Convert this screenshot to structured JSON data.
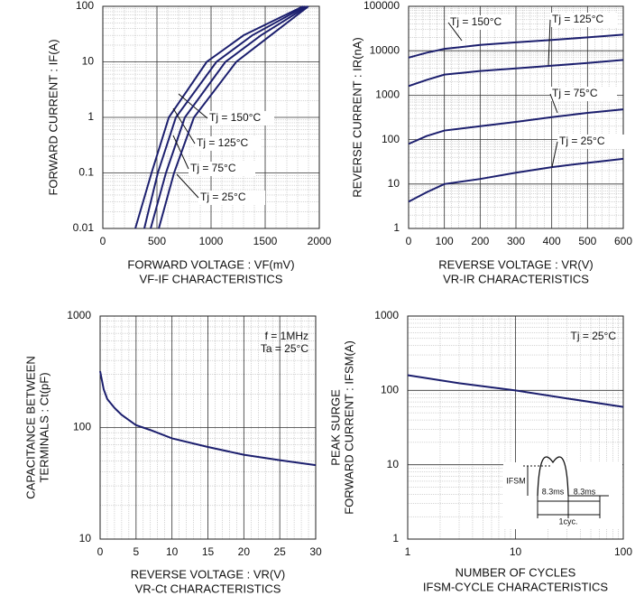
{
  "chart_data": [
    {
      "type": "line",
      "title": "VF-IF CHARACTERISTICS",
      "xlabel": "FORWARD VOLTAGE : VF(mV)",
      "ylabel": [
        "FORWARD CURRENT : IF(A)"
      ],
      "xscale": "linear",
      "yscale": "log",
      "xlim": [
        0,
        2000
      ],
      "xticks": [
        0,
        500,
        1000,
        1500,
        2000
      ],
      "ylim": [
        0.01,
        100
      ],
      "yticks": [
        0.01,
        0.1,
        1,
        10,
        100
      ],
      "grid": true,
      "color": "#1c1f6e",
      "series": [
        {
          "name": "Tj = 150°C",
          "x": [
            300,
            450,
            610,
            960,
            1300,
            1850
          ],
          "values": [
            0.01,
            0.1,
            1,
            10,
            30,
            100
          ]
        },
        {
          "name": "Tj = 125°C",
          "x": [
            383,
            508,
            675,
            1050,
            1380,
            1870
          ],
          "values": [
            0.01,
            0.1,
            1,
            10,
            30,
            100
          ]
        },
        {
          "name": "Tj = 75°C",
          "x": [
            442,
            583,
            758,
            1133,
            1460,
            1890
          ],
          "values": [
            0.01,
            0.1,
            1,
            10,
            30,
            100
          ]
        },
        {
          "name": "Tj = 25°C",
          "x": [
            517,
            658,
            842,
            1233,
            1550,
            1900
          ],
          "values": [
            0.01,
            0.1,
            1,
            10,
            30,
            100
          ]
        }
      ]
    },
    {
      "type": "line",
      "title": "VR-IR CHARACTERISTICS",
      "xlabel": "REVERSE VOLTAGE : VR(V)",
      "ylabel": [
        "REVERSE CURRENT : IR(nA)"
      ],
      "xscale": "linear",
      "yscale": "log",
      "xlim": [
        0,
        600
      ],
      "xticks": [
        0,
        100,
        200,
        300,
        400,
        500,
        600
      ],
      "ylim": [
        1,
        100000
      ],
      "yticks": [
        1,
        10,
        100,
        1000,
        10000,
        100000
      ],
      "grid": true,
      "color": "#1c1f6e",
      "x": [
        0,
        50,
        100,
        200,
        300,
        400,
        500,
        600
      ],
      "series": [
        {
          "name": "Tj = 150°C",
          "values": [
            7000,
            9000,
            11000,
            13500,
            15500,
            17500,
            20000,
            23000
          ]
        },
        {
          "name": "Tj = 125°C",
          "values": [
            1600,
            2200,
            2900,
            3500,
            4000,
            4600,
            5300,
            6200
          ]
        },
        {
          "name": "Tj = 75°C",
          "values": [
            80,
            120,
            160,
            200,
            250,
            320,
            400,
            480
          ]
        },
        {
          "name": "Tj = 25°C",
          "values": [
            4,
            6.5,
            10,
            13,
            18,
            24,
            30,
            37
          ]
        }
      ]
    },
    {
      "type": "line",
      "title": "VR-Ct CHARACTERISTICS",
      "xlabel": "REVERSE VOLTAGE : VR(V)",
      "ylabel": [
        "CAPACITANCE BETWEEN",
        "TERMINALS : Ct(pF)"
      ],
      "xscale": "linear",
      "yscale": "log",
      "xlim": [
        0,
        30
      ],
      "xticks": [
        0,
        5,
        10,
        15,
        20,
        25,
        30
      ],
      "ylim": [
        10,
        1000
      ],
      "yticks": [
        10,
        100,
        1000
      ],
      "grid": true,
      "color": "#1c1f6e",
      "annotations": [
        "f = 1MHz",
        "Ta = 25°C"
      ],
      "x": [
        0,
        0.5,
        1,
        2,
        3,
        5,
        7,
        10,
        15,
        20,
        25,
        30
      ],
      "values": [
        320,
        220,
        180,
        150,
        130,
        105,
        95,
        80,
        67,
        57,
        51,
        46
      ]
    },
    {
      "type": "line",
      "title": "IFSM-CYCLE CHARACTERISTICS",
      "xlabel": "NUMBER OF CYCLES",
      "ylabel": [
        "PEAK SURGE",
        "FORWARD CURRENT : IFSM(A)"
      ],
      "xscale": "log",
      "yscale": "log",
      "xlim": [
        1,
        100
      ],
      "xticks": [
        1,
        10,
        100
      ],
      "ylim": [
        1,
        1000
      ],
      "yticks": [
        1,
        10,
        100,
        1000
      ],
      "grid": true,
      "color": "#1c1f6e",
      "annotations": [
        "Tj = 25°C"
      ],
      "inset_labels": [
        "IFSM",
        "8.3ms",
        "8.3ms",
        "1cyc."
      ],
      "x": [
        1,
        3,
        10,
        30,
        100
      ],
      "values": [
        160,
        125,
        100,
        78,
        60
      ]
    }
  ]
}
